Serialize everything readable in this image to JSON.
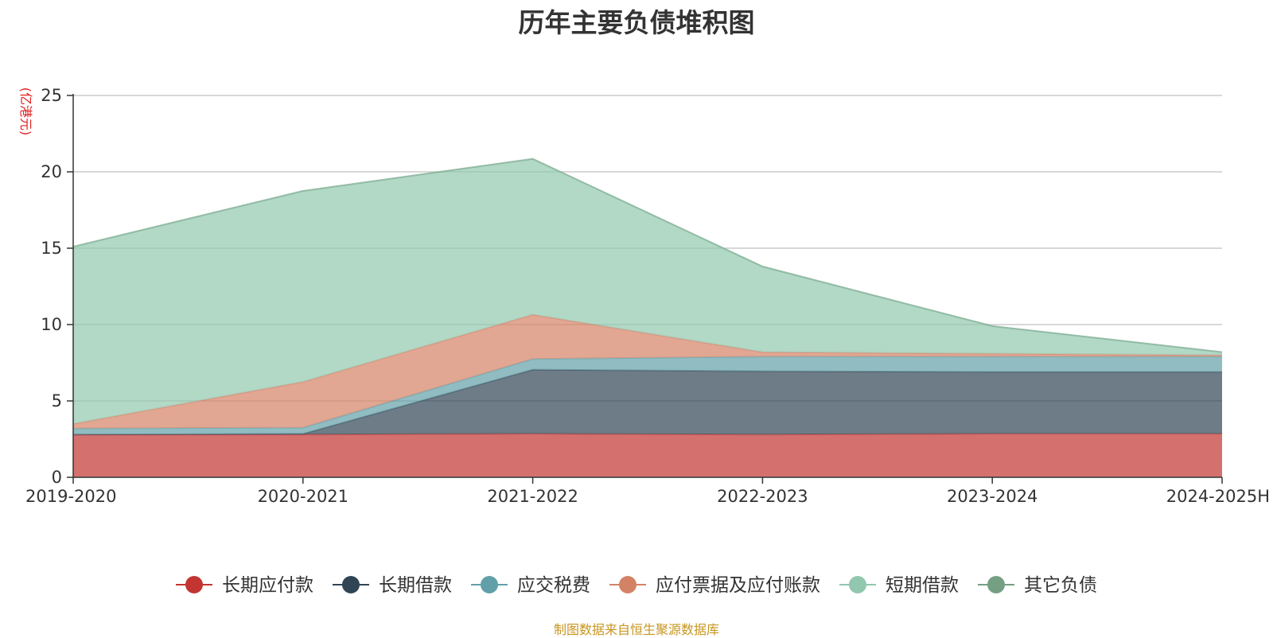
{
  "chart_data": {
    "type": "area",
    "stacked": true,
    "title": "历年主要负债堆积图",
    "unit_label": "(亿港元)",
    "categories": [
      "2019-2020",
      "2020-2021",
      "2021-2022",
      "2022-2023",
      "2023-2024",
      "2024-2025H"
    ],
    "ylim": [
      0,
      25
    ],
    "yticks": [
      0,
      5,
      10,
      15,
      20,
      25
    ],
    "grid": true,
    "legend_position": "bottom",
    "series": [
      {
        "name": "长期应付款",
        "color": "#c23531",
        "values": [
          2.8,
          2.8,
          2.85,
          2.8,
          2.85,
          2.85
        ]
      },
      {
        "name": "长期借款",
        "color": "#2f4554",
        "values": [
          0,
          0.05,
          4.2,
          4.15,
          4.05,
          4.05
        ]
      },
      {
        "name": "应交税费",
        "color": "#61a0a8",
        "values": [
          0.4,
          0.4,
          0.7,
          0.95,
          1.0,
          1.0
        ]
      },
      {
        "name": "应付票据及应付账款",
        "color": "#d48265",
        "values": [
          0.3,
          3.0,
          2.9,
          0.3,
          0.2,
          0.1
        ]
      },
      {
        "name": "短期借款",
        "color": "#91c7ae",
        "values": [
          11.6,
          12.5,
          10.2,
          5.6,
          1.8,
          0.2
        ]
      },
      {
        "name": "其它负债",
        "color": "#749f83",
        "values": [
          0,
          0,
          0,
          0,
          0,
          0
        ]
      }
    ]
  },
  "source_note": "制图数据来自恒生聚源数据库"
}
